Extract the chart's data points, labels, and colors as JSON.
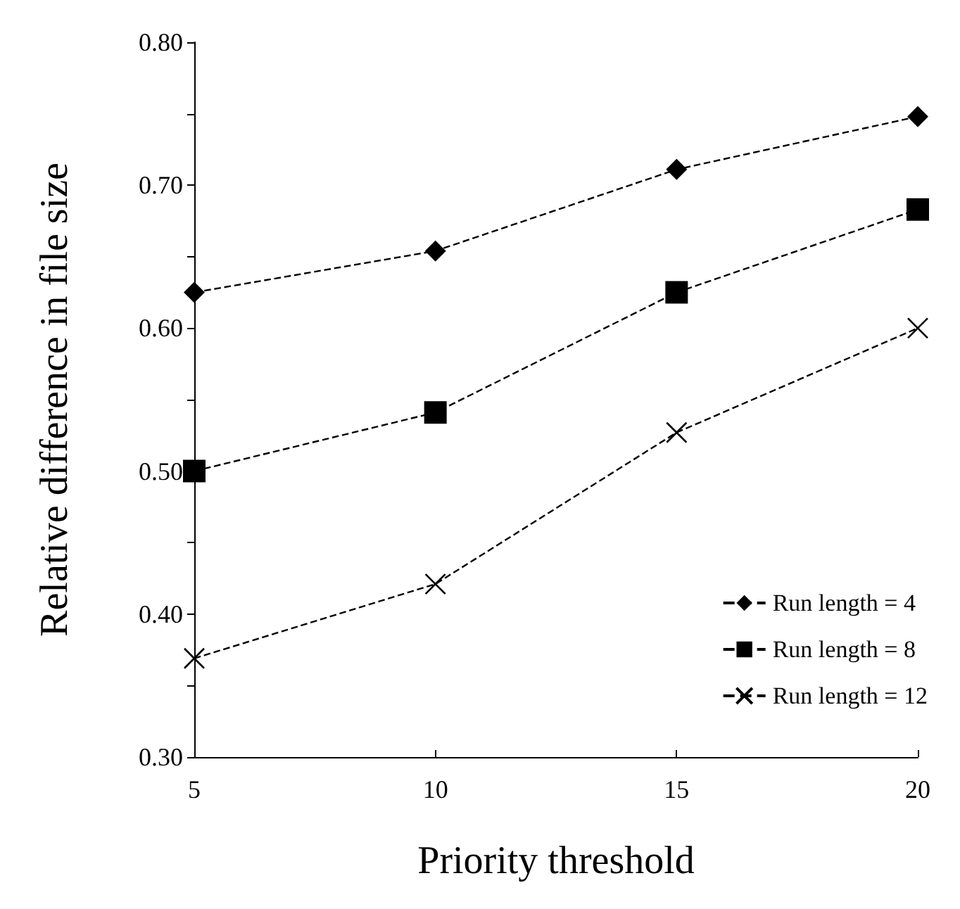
{
  "chart_data": {
    "type": "line",
    "xlabel": "Priority threshold",
    "ylabel": "Relative difference in file size",
    "x": [
      5,
      10,
      15,
      20
    ],
    "series": [
      {
        "name": "Run length = 4",
        "color": "#000000",
        "marker": "diamond",
        "values": [
          0.625,
          0.654,
          0.711,
          0.748
        ]
      },
      {
        "name": "Run length = 8",
        "color": "#000000",
        "marker": "square",
        "values": [
          0.5,
          0.541,
          0.625,
          0.683
        ]
      },
      {
        "name": "Run length = 12",
        "color": "#000000",
        "marker": "cross",
        "values": [
          0.369,
          0.421,
          0.527,
          0.6
        ]
      }
    ],
    "xlim": [
      5,
      20
    ],
    "xticks": [
      5,
      10,
      15,
      20
    ],
    "ylim": [
      0.3,
      0.8
    ],
    "yticks": [
      {
        "value": 0.3,
        "label": "0.30"
      },
      {
        "value": 0.35,
        "label": null
      },
      {
        "value": 0.4,
        "label": "0.40"
      },
      {
        "value": 0.45,
        "label": null
      },
      {
        "value": 0.5,
        "label": "0.50"
      },
      {
        "value": 0.55,
        "label": null
      },
      {
        "value": 0.6,
        "label": "0.60"
      },
      {
        "value": 0.65,
        "label": null
      },
      {
        "value": 0.7,
        "label": "0.70"
      },
      {
        "value": 0.75,
        "label": null
      },
      {
        "value": 0.8,
        "label": "0.80"
      }
    ],
    "grid": false,
    "legend": "bottom right",
    "line_style": "dashed"
  }
}
